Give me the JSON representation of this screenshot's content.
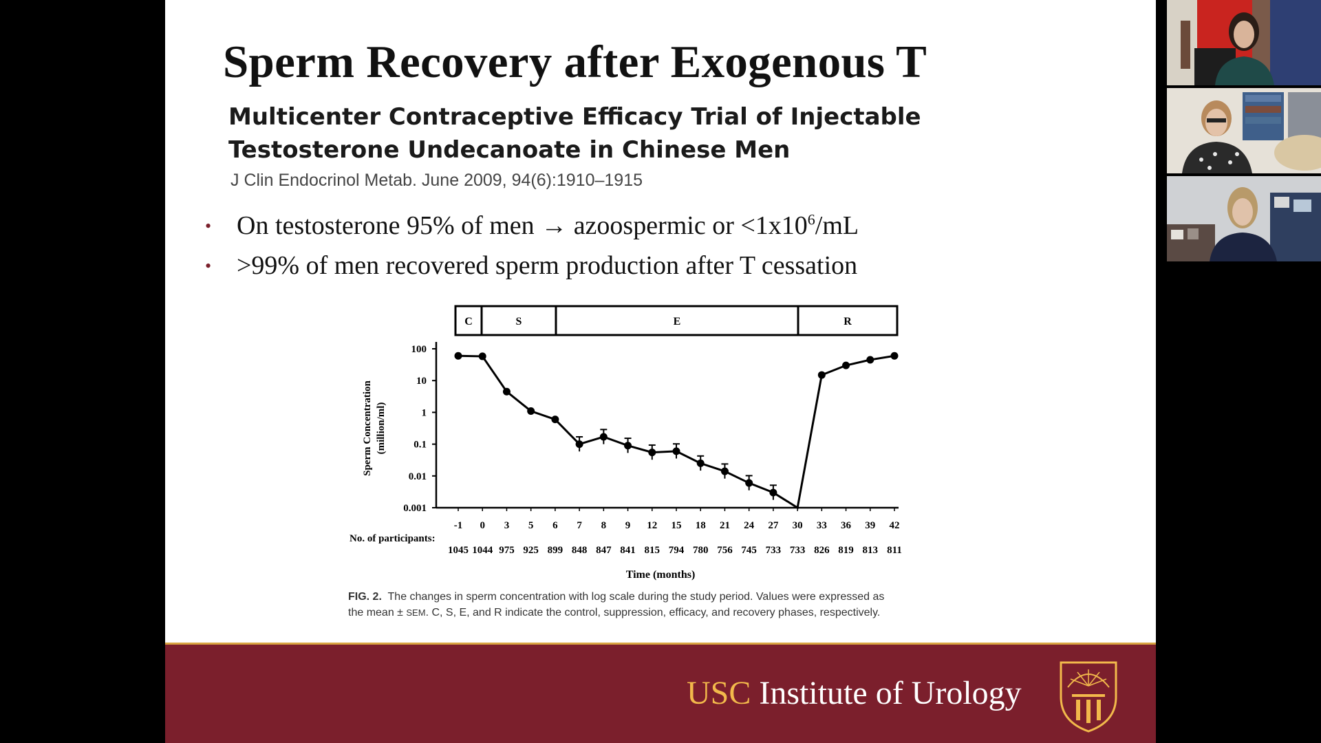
{
  "slide": {
    "title": "Sperm Recovery after Exogenous T",
    "paper_title_line1": "Multicenter Contraceptive Efficacy Trial of Injectable",
    "paper_title_line2": "Testosterone Undecanoate in Chinese Men",
    "journal": "J Clin Endocrinol Metab. June 2009, 94(6):1910–1915",
    "bullets": [
      {
        "pre": "On testosterone 95% of men ",
        "arrow": "→",
        "mid": " azoospermic or <1x10",
        "sup": "6",
        "post": "/mL"
      },
      {
        "text": ">99% of men recovered sperm production after T cessation"
      }
    ],
    "bullet_marker": "•",
    "caption": {
      "label": "FIG. 2.",
      "part1": "The changes in sperm concentration with log scale during the study period. Values were expressed as the mean ± ",
      "sem": "SEM",
      "part2": ". C, S, E, and R indicate the control, suppression, efficacy, and recovery phases, respectively."
    },
    "footer": {
      "usc": "USC",
      "rest": " Institute of Urology"
    }
  },
  "chart_data": {
    "type": "line",
    "phases": [
      {
        "label": "C",
        "from": -1,
        "to": 0
      },
      {
        "label": "S",
        "from": 0,
        "to": 6
      },
      {
        "label": "E",
        "from": 6,
        "to": 30
      },
      {
        "label": "R",
        "from": 30,
        "to": 42
      }
    ],
    "x": [
      "-1",
      "0",
      "3",
      "5",
      "6",
      "7",
      "8",
      "9",
      "12",
      "15",
      "18",
      "21",
      "24",
      "27",
      "30",
      "33",
      "36",
      "39",
      "42"
    ],
    "values": [
      60,
      58,
      4.5,
      1.1,
      0.6,
      0.1,
      0.17,
      0.09,
      0.055,
      0.06,
      0.025,
      0.014,
      0.006,
      0.003,
      0.001,
      15,
      30,
      45,
      60
    ],
    "errors": [
      false,
      false,
      false,
      false,
      false,
      true,
      true,
      true,
      true,
      true,
      true,
      true,
      true,
      true,
      false,
      false,
      false,
      false,
      false
    ],
    "participants_label": "No. of participants:",
    "participants": [
      "1045",
      "1044",
      "975",
      "925",
      "899",
      "848",
      "847",
      "841",
      "815",
      "794",
      "780",
      "756",
      "745",
      "733",
      "733",
      "826",
      "819",
      "813",
      "811"
    ],
    "yticks": [
      "100",
      "10",
      "1",
      "0.1",
      "0.01",
      "0.001"
    ],
    "ylim": [
      0.001,
      100
    ],
    "yscale": "log",
    "ylabel": "Sperm Concentration",
    "ylabel2": "(million/ml)",
    "xlabel": "Time (months)"
  }
}
